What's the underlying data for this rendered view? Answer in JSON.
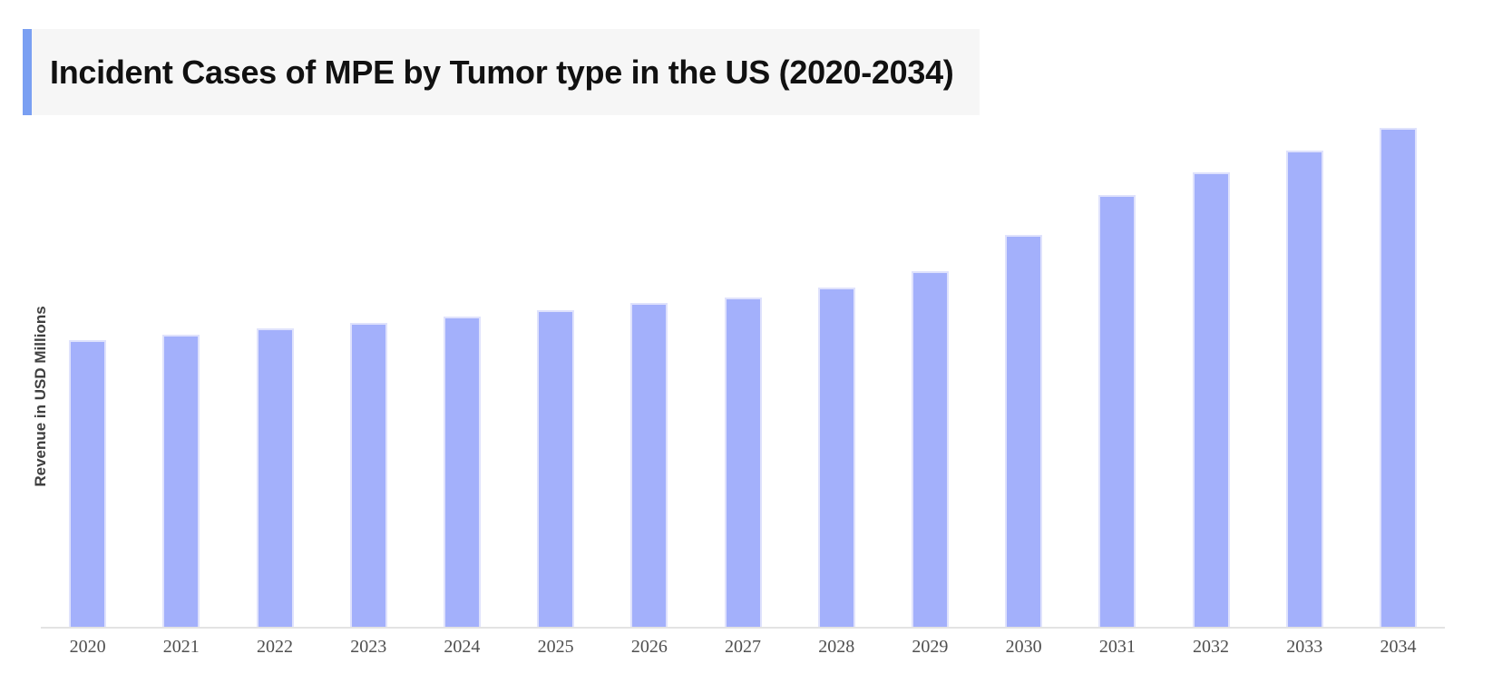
{
  "title": {
    "text": "Incident Cases of MPE by Tumor type in the US (2020-2034)"
  },
  "y_axis": {
    "label": "Revenue in USD Millions"
  },
  "colors": {
    "background": "#ffffff",
    "accent_blue": "#7a9ff2",
    "title_bg": "#f6f6f6",
    "title_text": "#111111",
    "bar_fill": "#a3b0fb",
    "bar_edge": "#dfe2fc",
    "axis_line": "#e3e3e3",
    "x_label": "#4f4f4f",
    "y_label": "#3f3f3f"
  },
  "chart_data": {
    "type": "bar",
    "title": "Incident Cases of MPE by Tumor type in the US (2020-2034)",
    "xlabel": "",
    "ylabel": "Revenue in USD Millions",
    "categories": [
      "2020",
      "2021",
      "2022",
      "2023",
      "2024",
      "2025",
      "2026",
      "2027",
      "2028",
      "2029",
      "2030",
      "2031",
      "2032",
      "2033",
      "2034"
    ],
    "values": [
      57.5,
      58.5,
      59.8,
      60.9,
      62.2,
      63.5,
      64.9,
      66.0,
      68.0,
      71.3,
      78.5,
      86.5,
      91.1,
      95.5,
      100.0
    ],
    "values_note": "relative units normalized to 2034 = 100; chart displays no numeric y-axis tick labels",
    "ylim": [
      0,
      100
    ],
    "y_ticks_visible": false,
    "grid": false,
    "legend": "none",
    "bar_color": "#a3b0fb"
  }
}
